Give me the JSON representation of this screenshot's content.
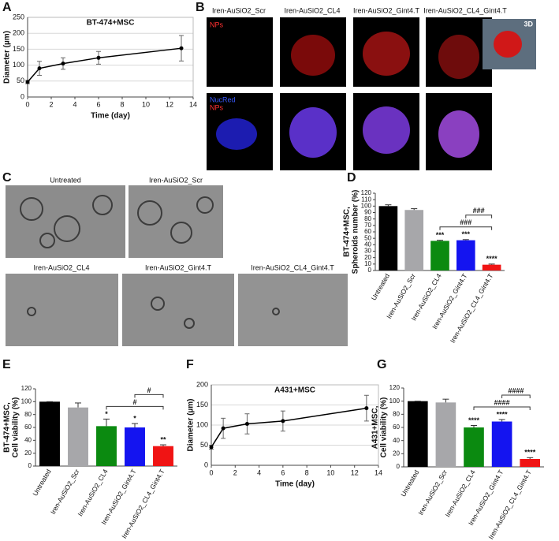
{
  "chart_data": [
    {
      "panel": "A",
      "type": "line",
      "title": "BT-474+MSC",
      "xlabel": "Time (day)",
      "ylabel": "Diameter (µm)",
      "x": [
        0,
        1,
        3,
        6,
        13
      ],
      "values": [
        47,
        90,
        105,
        123,
        153
      ],
      "errors": [
        5,
        22,
        18,
        20,
        40
      ],
      "color": "#000000",
      "xlim": [
        0,
        14
      ],
      "xticks": [
        0,
        2,
        4,
        6,
        8,
        10,
        12,
        14
      ],
      "ylim": [
        0,
        250
      ],
      "yticks": [
        0,
        50,
        100,
        150,
        200,
        250
      ],
      "grid": true
    },
    {
      "panel": "D",
      "type": "bar",
      "ylabel": [
        "BT-474+MSC,",
        "Spheroids number (%)"
      ],
      "categories": [
        "Untreated",
        "Iren-AuSiO2_Scr",
        "Iren-AuSiO2_CL4",
        "Iren-AuSiO2_Gint4.T",
        "Iren-AuSiO2_CL4_Gint4.T"
      ],
      "values": [
        100,
        94,
        46,
        47,
        9
      ],
      "errors": [
        2,
        2,
        1,
        1,
        1
      ],
      "colors": [
        "#000000",
        "#a7a7aa",
        "#0b8a10",
        "#1414f0",
        "#f01414"
      ],
      "significance": [
        null,
        null,
        "***",
        "***",
        "****"
      ],
      "brackets": [
        {
          "from": 2,
          "to": 4,
          "label": "###"
        },
        {
          "from": 3,
          "to": 4,
          "label": "###"
        }
      ],
      "ylim": [
        0,
        120
      ],
      "yticks": [
        0,
        10,
        20,
        30,
        40,
        50,
        60,
        70,
        80,
        90,
        100,
        110,
        120
      ]
    },
    {
      "panel": "E",
      "type": "bar",
      "ylabel": [
        "BT-474+MSC,",
        "Cell viability (%)"
      ],
      "categories": [
        "Untreated",
        "Iren-AuSiO2_Scr",
        "Iren-AuSiO2_CL4",
        "Iren-AuSiO2_Gint4.T",
        "Iren-AuSiO2_CL4_Gint4.T"
      ],
      "values": [
        100,
        91,
        62,
        60,
        31
      ],
      "errors": [
        0,
        7,
        11,
        6,
        2
      ],
      "colors": [
        "#000000",
        "#a7a7aa",
        "#0b8a10",
        "#1414f0",
        "#f01414"
      ],
      "significance": [
        null,
        null,
        "*",
        "*",
        "**"
      ],
      "brackets": [
        {
          "from": 2,
          "to": 4,
          "label": "#"
        },
        {
          "from": 3,
          "to": 4,
          "label": "#"
        }
      ],
      "ylim": [
        0,
        120
      ],
      "yticks": [
        0,
        20,
        40,
        60,
        80,
        100,
        120
      ]
    },
    {
      "panel": "F",
      "type": "line",
      "title": "A431+MSC",
      "xlabel": "Time (day)",
      "ylabel": "Diameter (µm)",
      "x": [
        0,
        1,
        3,
        6,
        13
      ],
      "values": [
        45,
        92,
        103,
        110,
        142
      ],
      "errors": [
        5,
        25,
        25,
        25,
        32
      ],
      "color": "#000000",
      "xlim": [
        0,
        14
      ],
      "xticks": [
        0,
        2,
        4,
        6,
        8,
        10,
        12,
        14
      ],
      "ylim": [
        0,
        200
      ],
      "yticks": [
        0,
        50,
        100,
        150,
        200
      ],
      "grid": true
    },
    {
      "panel": "G",
      "type": "bar",
      "ylabel": [
        "A431+MSC,",
        "Cell viability (%)"
      ],
      "categories": [
        "Untreated",
        "Iren-AuSiO2_Scr",
        "Iren-AuSiO2_CL4",
        "Iren-AuSiO2_Gint4.T",
        "Iren-AuSiO2_CL4_Gint4.T"
      ],
      "values": [
        100,
        98,
        60,
        69,
        12
      ],
      "errors": [
        0,
        5,
        3,
        3,
        2
      ],
      "colors": [
        "#000000",
        "#a7a7aa",
        "#0b8a10",
        "#1414f0",
        "#f01414"
      ],
      "significance": [
        null,
        null,
        "****",
        "****",
        "****"
      ],
      "brackets": [
        {
          "from": 2,
          "to": 4,
          "label": "####"
        },
        {
          "from": 3,
          "to": 4,
          "label": "####"
        }
      ],
      "ylim": [
        0,
        120
      ],
      "yticks": [
        0,
        20,
        40,
        60,
        80,
        100,
        120
      ]
    }
  ],
  "panel_b": {
    "panel": "B",
    "columns": [
      "Iren-AuSiO2_Scr",
      "Iren-AuSiO2_CL4",
      "Iren-AuSiO2_Gint4.T",
      "Iren-AuSiO2_CL4_Gint4.T"
    ],
    "row1_label": "NPs",
    "row2_labels": [
      "NucRed",
      "NPs"
    ],
    "inset": "3D"
  },
  "panel_c": {
    "panel": "C",
    "captions": [
      "Untreated",
      "Iren-AuSiO2_Scr",
      "Iren-AuSiO2_CL4",
      "Iren-AuSiO2_Gint4.T",
      "Iren-AuSiO2_CL4_Gint4.T"
    ]
  }
}
